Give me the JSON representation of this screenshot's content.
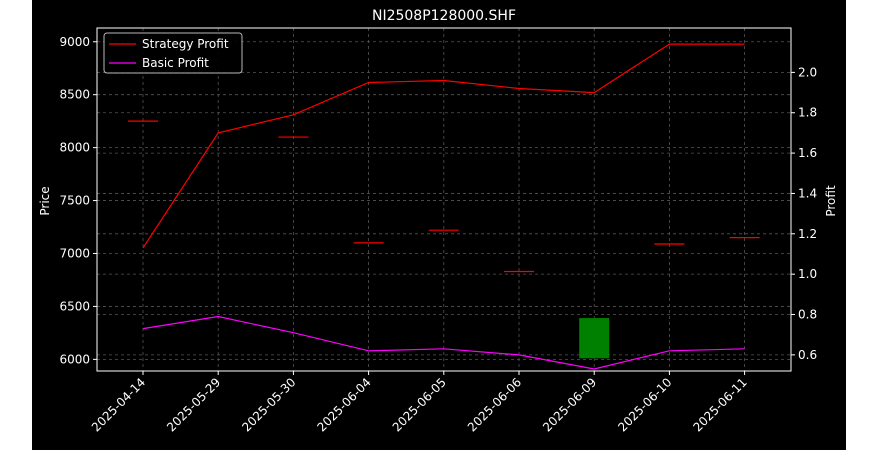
{
  "chart_data": {
    "type": "line",
    "title": "NI2508P128000.SHF",
    "xlabel": "",
    "ylabel_left": "Price",
    "ylabel_right": "Profit",
    "categories": [
      "2025-04-14",
      "2025-05-29",
      "2025-05-30",
      "2025-06-04",
      "2025-06-05",
      "2025-06-06",
      "2025-06-09",
      "2025-06-10",
      "2025-06-11"
    ],
    "ylim_left": [
      5890,
      9130
    ],
    "ylim_right": [
      0.52,
      2.22
    ],
    "yticks_left": [
      6000,
      6500,
      7000,
      7500,
      8000,
      8500,
      9000
    ],
    "yticks_right": [
      0.6,
      0.8,
      1.0,
      1.2,
      1.4,
      1.6,
      1.8,
      2.0
    ],
    "price_candles": [
      {
        "date": "2025-04-14",
        "open": 8250,
        "close": 8250
      },
      {
        "date": "2025-05-29",
        "open": null,
        "close": null
      },
      {
        "date": "2025-05-30",
        "open": 8100,
        "close": 8100
      },
      {
        "date": "2025-06-04",
        "open": 7100,
        "close": 7100
      },
      {
        "date": "2025-06-05",
        "open": 7220,
        "close": 7220
      },
      {
        "date": "2025-06-06",
        "open": 6830,
        "close": 6830
      },
      {
        "date": "2025-06-09",
        "open": 6010,
        "close": 6390
      },
      {
        "date": "2025-06-10",
        "open": 7090,
        "close": 7090
      },
      {
        "date": "2025-06-11",
        "open": 7150,
        "close": 7150
      }
    ],
    "series": [
      {
        "name": "Strategy Profit",
        "color": "#ff0000",
        "axis": "right",
        "values": [
          1.13,
          1.7,
          1.79,
          1.95,
          1.96,
          1.92,
          1.9,
          2.14,
          2.14
        ]
      },
      {
        "name": "Basic Profit",
        "color": "#ff00ff",
        "axis": "right",
        "values": [
          0.73,
          0.79,
          0.71,
          0.62,
          0.63,
          0.6,
          0.53,
          0.62,
          0.63
        ]
      }
    ],
    "colors": {
      "background": "#000000",
      "up": "#008000",
      "down": "#ff0000",
      "grid": "#555555"
    },
    "grid": true,
    "legend": "top-left"
  }
}
